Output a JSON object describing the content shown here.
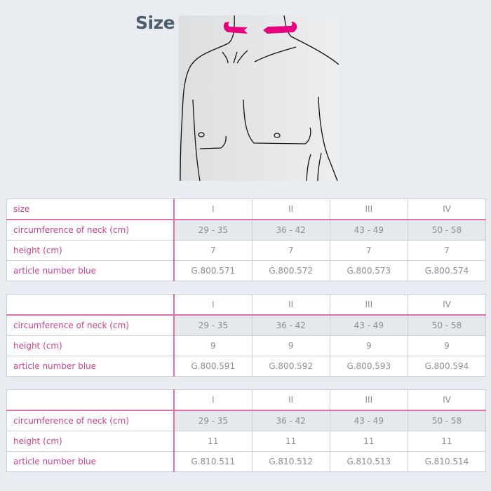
{
  "title": "Size table",
  "colors": {
    "accent": "#e6007e",
    "label": "#d0418e",
    "background": "#e9edf1"
  },
  "figure": {
    "icon": "torso-neck-measure-illustration"
  },
  "tables": [
    {
      "header": {
        "label": "size",
        "cols": [
          "I",
          "II",
          "III",
          "IV"
        ]
      },
      "rows": [
        {
          "label": "circumference of neck (cm)",
          "cols": [
            "29 - 35",
            "36 - 42",
            "43 - 49",
            "50 - 58"
          ]
        },
        {
          "label": "height (cm)",
          "cols": [
            "7",
            "7",
            "7",
            "7"
          ]
        },
        {
          "label": "article number blue",
          "cols": [
            "G.800.571",
            "G.800.572",
            "G.800.573",
            "G.800.574"
          ]
        }
      ]
    },
    {
      "header": {
        "label": "",
        "cols": [
          "I",
          "II",
          "III",
          "IV"
        ]
      },
      "rows": [
        {
          "label": "circumference of neck (cm)",
          "cols": [
            "29 - 35",
            "36 - 42",
            "43 - 49",
            "50 - 58"
          ]
        },
        {
          "label": "height (cm)",
          "cols": [
            "9",
            "9",
            "9",
            "9"
          ]
        },
        {
          "label": "article number blue",
          "cols": [
            "G.800.591",
            "G.800.592",
            "G.800.593",
            "G.800.594"
          ]
        }
      ]
    },
    {
      "header": {
        "label": "",
        "cols": [
          "I",
          "II",
          "III",
          "IV"
        ]
      },
      "rows": [
        {
          "label": "circumference of neck (cm)",
          "cols": [
            "29 - 35",
            "36 - 42",
            "43 - 49",
            "50 - 58"
          ]
        },
        {
          "label": "height (cm)",
          "cols": [
            "11",
            "11",
            "11",
            "11"
          ]
        },
        {
          "label": "article number blue",
          "cols": [
            "G.810.511",
            "G.810.512",
            "G.810.513",
            "G.810.514"
          ]
        }
      ]
    }
  ]
}
